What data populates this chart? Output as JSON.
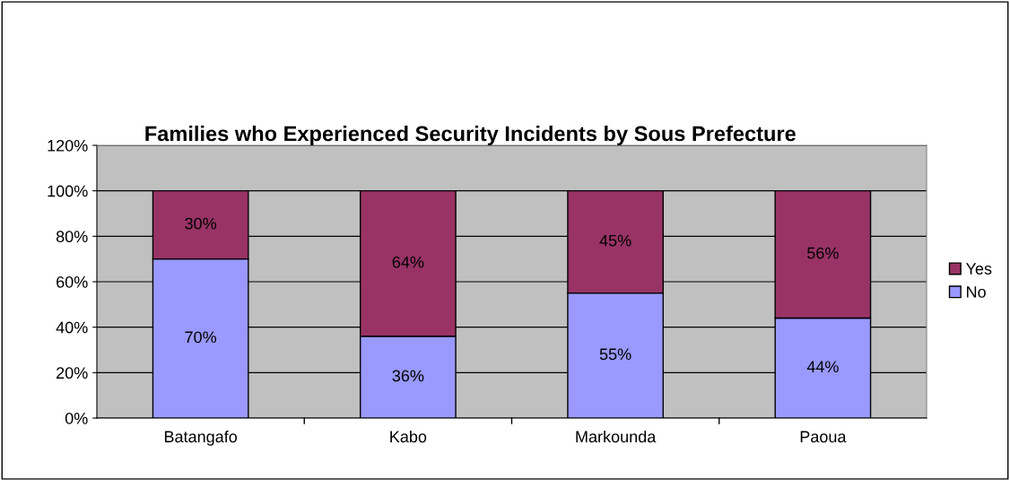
{
  "chart_data": {
    "type": "bar",
    "title": "Families who Experienced Security Incidents by Sous Prefecture",
    "stacked": true,
    "categories": [
      "Batangafo",
      "Kabo",
      "Markounda",
      "Paoua"
    ],
    "series": [
      {
        "name": "No",
        "color": "#9999ff",
        "values": [
          70,
          36,
          55,
          44
        ],
        "value_labels": [
          "70%",
          "36%",
          "55%",
          "44%"
        ]
      },
      {
        "name": "Yes",
        "color": "#993366",
        "values": [
          30,
          64,
          45,
          56
        ],
        "value_labels": [
          "30%",
          "64%",
          "45%",
          "56%"
        ]
      }
    ],
    "ylim": [
      0,
      120
    ],
    "yticks": [
      {
        "value": 0,
        "label": "0%"
      },
      {
        "value": 20,
        "label": "20%"
      },
      {
        "value": 40,
        "label": "40%"
      },
      {
        "value": 60,
        "label": "60%"
      },
      {
        "value": 80,
        "label": "80%"
      },
      {
        "value": 100,
        "label": "100%"
      },
      {
        "value": 120,
        "label": "120%"
      }
    ],
    "grid": "y",
    "legend": "right"
  }
}
